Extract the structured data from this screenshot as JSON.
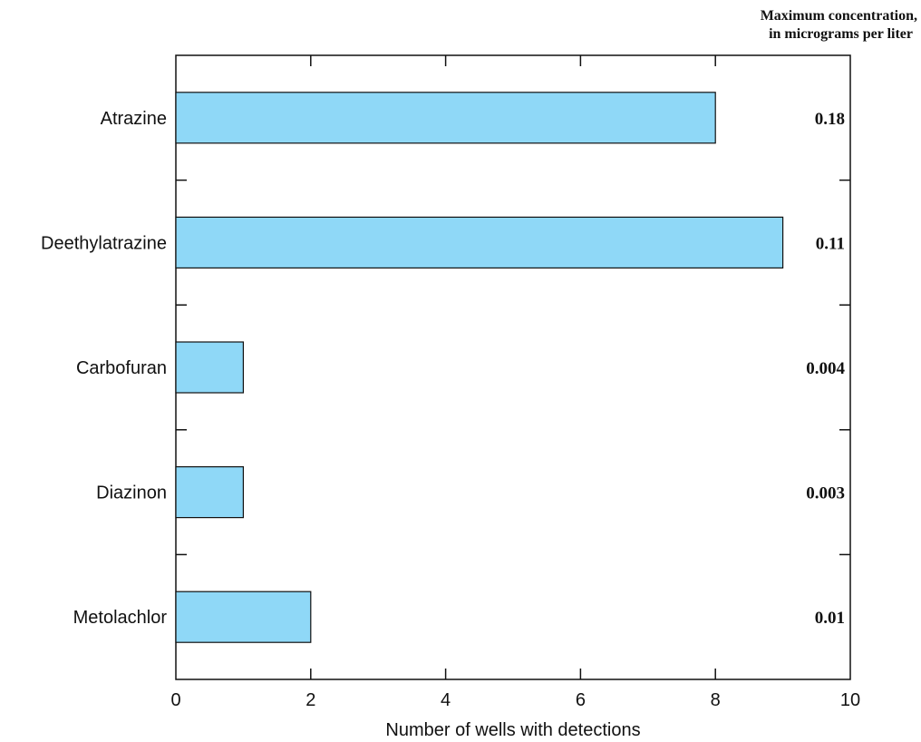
{
  "chart_data": {
    "type": "bar",
    "orientation": "horizontal",
    "categories": [
      "Atrazine",
      "Deethylatrazine",
      "Carbofuran",
      "Diazinon",
      "Metolachlor"
    ],
    "values": [
      8,
      9,
      1,
      1,
      2
    ],
    "xlabel": "Number of wells with detections",
    "xlim": [
      0,
      10
    ],
    "xticks": [
      0,
      2,
      4,
      6,
      8,
      10
    ],
    "bar_color": "#8fd8f7",
    "right_header_line1": "Maximum concentration,",
    "right_header_line2": "in micrograms per liter",
    "concentrations": [
      "0.18",
      "0.11",
      "0.004",
      "0.003",
      "0.01"
    ]
  }
}
